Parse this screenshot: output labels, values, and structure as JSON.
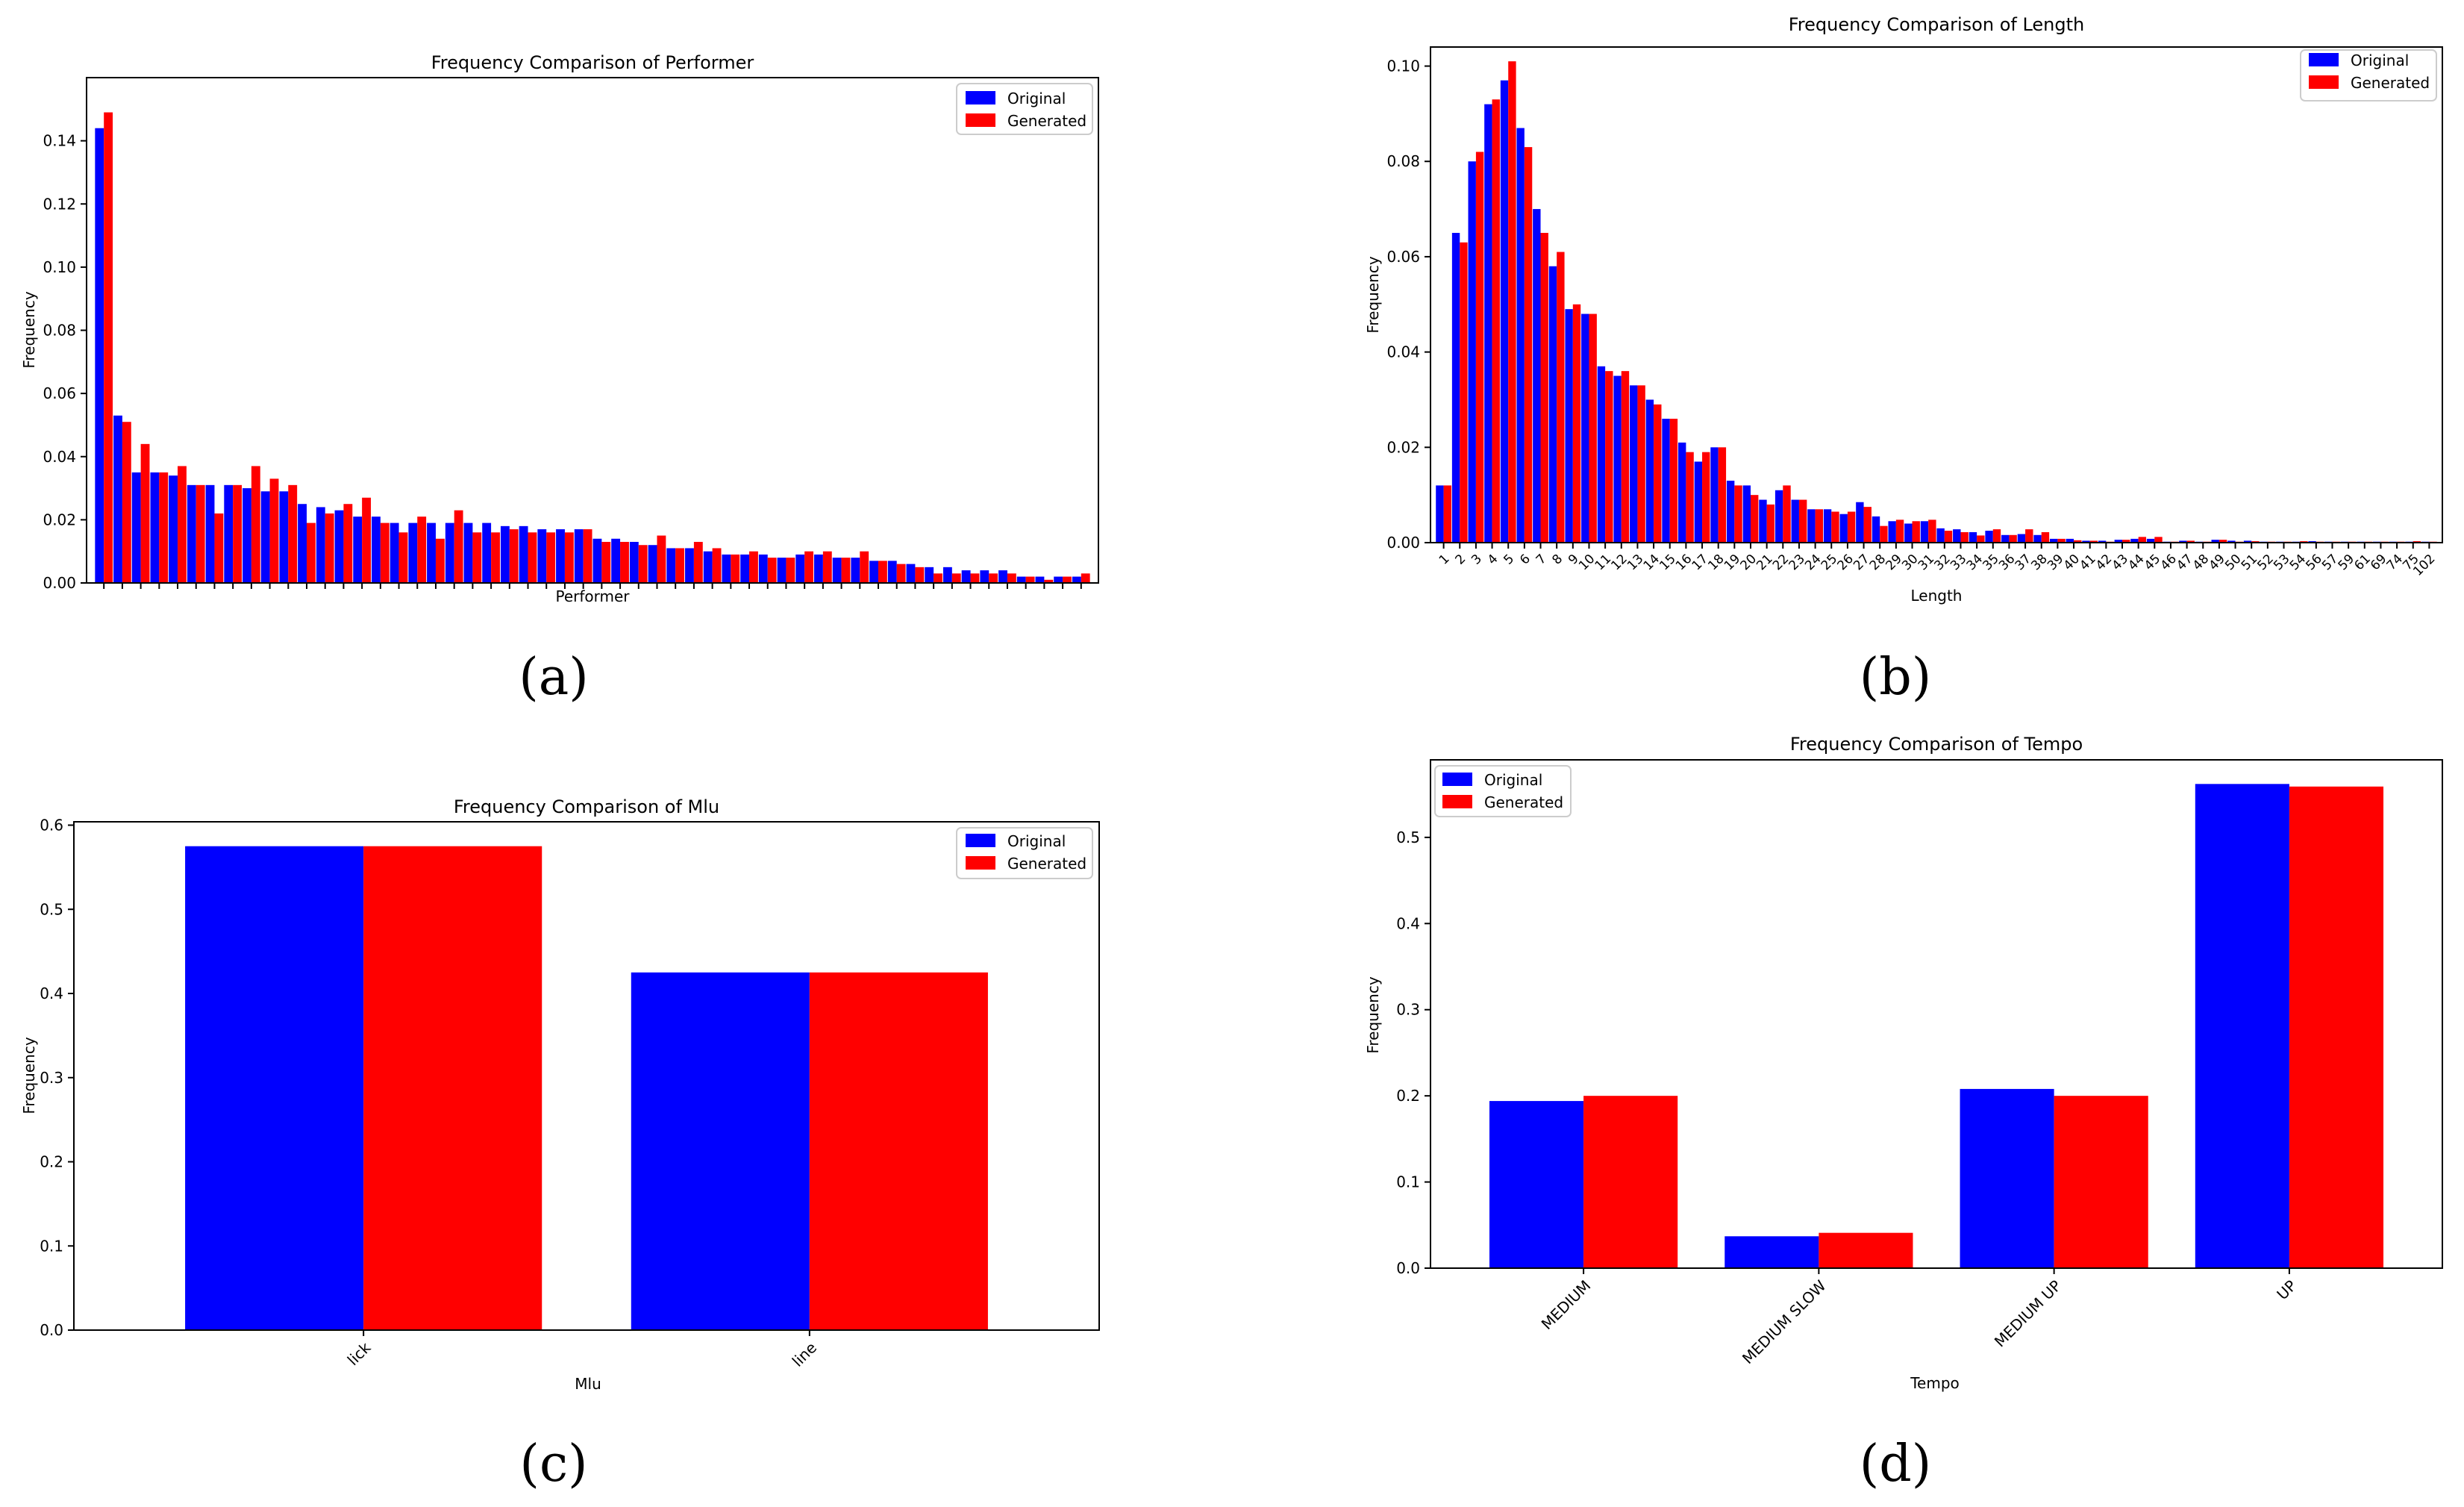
{
  "colors": {
    "original": "#0000ff",
    "generated": "#ff0000",
    "axis": "#000000",
    "background": "#ffffff"
  },
  "chart_data": [
    {
      "id": "a",
      "caption": "(a)",
      "type": "bar",
      "title": "Frequency Comparison of Performer",
      "xlabel": "Performer",
      "ylabel": "Frequency",
      "legend": {
        "position": "top-right",
        "labels": [
          "Original",
          "Generated"
        ]
      },
      "ylim": [
        0,
        0.16
      ],
      "yticks": [
        0.0,
        0.02,
        0.04,
        0.06,
        0.08,
        0.1,
        0.12,
        0.14
      ],
      "ytick_labels": [
        "0.00",
        "0.02",
        "0.04",
        "0.06",
        "0.08",
        "0.10",
        "0.12",
        "0.14"
      ],
      "categories": [
        "",
        "",
        "",
        "",
        "",
        "",
        "",
        "",
        "",
        "",
        "",
        "",
        "",
        "",
        "",
        "",
        "",
        "",
        "",
        "",
        "",
        "",
        "",
        "",
        "",
        "",
        "",
        "",
        "",
        "",
        "",
        "",
        "",
        "",
        "",
        "",
        "",
        "",
        "",
        "",
        "",
        "",
        "",
        "",
        "",
        "",
        "",
        "",
        "",
        "",
        "",
        "",
        "",
        ""
      ],
      "series": [
        {
          "name": "Original",
          "values": [
            0.144,
            0.053,
            0.035,
            0.035,
            0.034,
            0.031,
            0.031,
            0.031,
            0.03,
            0.029,
            0.029,
            0.025,
            0.024,
            0.023,
            0.021,
            0.021,
            0.019,
            0.019,
            0.019,
            0.019,
            0.019,
            0.019,
            0.018,
            0.018,
            0.017,
            0.017,
            0.017,
            0.014,
            0.014,
            0.013,
            0.012,
            0.011,
            0.011,
            0.01,
            0.009,
            0.009,
            0.009,
            0.008,
            0.009,
            0.009,
            0.008,
            0.008,
            0.007,
            0.007,
            0.006,
            0.005,
            0.005,
            0.004,
            0.004,
            0.004,
            0.002,
            0.002,
            0.002,
            0.002
          ]
        },
        {
          "name": "Generated",
          "values": [
            0.149,
            0.051,
            0.044,
            0.035,
            0.037,
            0.031,
            0.022,
            0.031,
            0.037,
            0.033,
            0.031,
            0.019,
            0.022,
            0.025,
            0.027,
            0.019,
            0.016,
            0.021,
            0.014,
            0.023,
            0.016,
            0.016,
            0.017,
            0.016,
            0.016,
            0.016,
            0.017,
            0.013,
            0.013,
            0.012,
            0.015,
            0.011,
            0.013,
            0.011,
            0.009,
            0.01,
            0.008,
            0.008,
            0.01,
            0.01,
            0.008,
            0.01,
            0.007,
            0.006,
            0.005,
            0.003,
            0.003,
            0.003,
            0.003,
            0.003,
            0.002,
            0.001,
            0.002,
            0.003
          ]
        }
      ]
    },
    {
      "id": "b",
      "caption": "(b)",
      "type": "bar",
      "title": "Frequency Comparison of Length",
      "xlabel": "Length",
      "ylabel": "Frequency",
      "legend": {
        "position": "top-right",
        "labels": [
          "Original",
          "Generated"
        ]
      },
      "ylim": [
        0,
        0.104
      ],
      "yticks": [
        0.0,
        0.02,
        0.04,
        0.06,
        0.08,
        0.1
      ],
      "ytick_labels": [
        "0.00",
        "0.02",
        "0.04",
        "0.06",
        "0.08",
        "0.10"
      ],
      "categories": [
        "1",
        "2",
        "3",
        "4",
        "5",
        "6",
        "7",
        "8",
        "9",
        "10",
        "11",
        "12",
        "13",
        "14",
        "15",
        "16",
        "17",
        "18",
        "19",
        "20",
        "21",
        "22",
        "23",
        "24",
        "25",
        "26",
        "27",
        "28",
        "29",
        "30",
        "31",
        "32",
        "33",
        "34",
        "35",
        "36",
        "37",
        "38",
        "39",
        "40",
        "41",
        "42",
        "43",
        "44",
        "45",
        "46",
        "47",
        "48",
        "49",
        "50",
        "51",
        "52",
        "53",
        "54",
        "56",
        "57",
        "59",
        "61",
        "69",
        "74",
        "75",
        "102"
      ],
      "series": [
        {
          "name": "Original",
          "values": [
            0.012,
            0.065,
            0.08,
            0.092,
            0.097,
            0.087,
            0.07,
            0.058,
            0.049,
            0.048,
            0.037,
            0.035,
            0.033,
            0.03,
            0.026,
            0.021,
            0.017,
            0.02,
            0.013,
            0.012,
            0.009,
            0.011,
            0.009,
            0.007,
            0.007,
            0.006,
            0.0085,
            0.0055,
            0.0045,
            0.004,
            0.0045,
            0.003,
            0.0028,
            0.0022,
            0.0025,
            0.0016,
            0.0018,
            0.0016,
            0.0008,
            0.0008,
            0.0004,
            0.0004,
            0.0006,
            0.0008,
            0.0008,
            0.0002,
            0.0004,
            0.0002,
            0.0006,
            0.0004,
            0.0004,
            0.0002,
            0.0002,
            0.0002,
            0.0003,
            0.0002,
            0.0002,
            0.0002,
            0.0002,
            0.0002,
            0.0002,
            0.0002
          ]
        },
        {
          "name": "Generated",
          "values": [
            0.012,
            0.063,
            0.082,
            0.093,
            0.101,
            0.083,
            0.065,
            0.061,
            0.05,
            0.048,
            0.036,
            0.036,
            0.033,
            0.029,
            0.026,
            0.019,
            0.019,
            0.02,
            0.012,
            0.01,
            0.008,
            0.012,
            0.009,
            0.007,
            0.0065,
            0.0065,
            0.0075,
            0.0035,
            0.0048,
            0.0045,
            0.0048,
            0.0025,
            0.0022,
            0.0015,
            0.0028,
            0.0016,
            0.0028,
            0.0022,
            0.0008,
            0.0005,
            0.0004,
            0.0002,
            0.0006,
            0.0012,
            0.0012,
            0.0002,
            0.0004,
            0.0002,
            0.0006,
            0.0002,
            0.0003,
            0.0002,
            0.0002,
            0.0003,
            0.0002,
            0.0002,
            0.0002,
            0.0002,
            0.0002,
            0.0002,
            0.0003,
            0.0002
          ]
        }
      ]
    },
    {
      "id": "c",
      "caption": "(c)",
      "type": "bar",
      "title": "Frequency Comparison of Mlu",
      "xlabel": "Mlu",
      "ylabel": "Frequency",
      "legend": {
        "position": "top-right",
        "labels": [
          "Original",
          "Generated"
        ]
      },
      "ylim": [
        0,
        0.604
      ],
      "yticks": [
        0.0,
        0.1,
        0.2,
        0.3,
        0.4,
        0.5,
        0.6
      ],
      "ytick_labels": [
        "0.0",
        "0.1",
        "0.2",
        "0.3",
        "0.4",
        "0.5",
        "0.6"
      ],
      "categories": [
        "lick",
        "line"
      ],
      "series": [
        {
          "name": "Original",
          "values": [
            0.575,
            0.425
          ]
        },
        {
          "name": "Generated",
          "values": [
            0.575,
            0.425
          ]
        }
      ]
    },
    {
      "id": "d",
      "caption": "(d)",
      "type": "bar",
      "title": "Frequency Comparison of Tempo",
      "xlabel": "Tempo",
      "ylabel": "Frequency",
      "legend": {
        "position": "top-left",
        "labels": [
          "Original",
          "Generated"
        ]
      },
      "ylim": [
        0,
        0.59
      ],
      "yticks": [
        0.0,
        0.1,
        0.2,
        0.3,
        0.4,
        0.5
      ],
      "ytick_labels": [
        "0.0",
        "0.1",
        "0.2",
        "0.3",
        "0.4",
        "0.5"
      ],
      "categories": [
        "MEDIUM",
        "MEDIUM SLOW",
        "MEDIUM UP",
        "UP"
      ],
      "series": [
        {
          "name": "Original",
          "values": [
            0.194,
            0.037,
            0.208,
            0.562
          ]
        },
        {
          "name": "Generated",
          "values": [
            0.2,
            0.041,
            0.2,
            0.559
          ]
        }
      ]
    }
  ]
}
